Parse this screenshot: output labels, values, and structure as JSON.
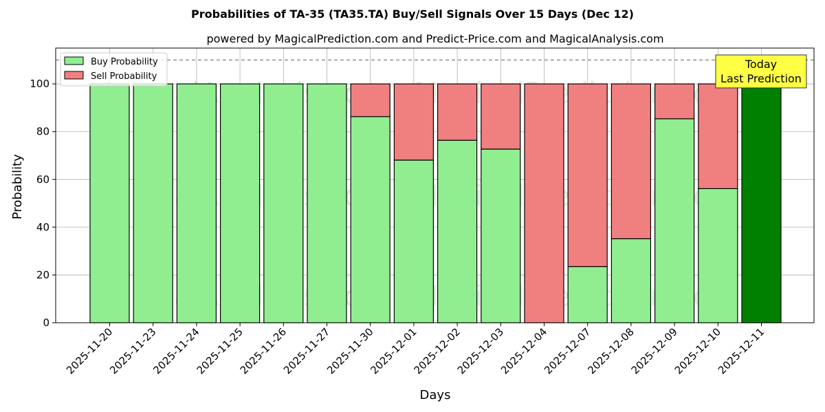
{
  "chart_data": {
    "type": "bar",
    "stacked": true,
    "title": "Probabilities of TA-35 (TA35.TA) Buy/Sell Signals Over 15 Days (Dec 12)",
    "subtitle": "powered by MagicalPrediction.com and Predict-Price.com and MagicalAnalysis.com",
    "xlabel": "Days",
    "ylabel": "Probability",
    "ylim": [
      0,
      115
    ],
    "yticks": [
      0,
      20,
      40,
      60,
      80,
      100
    ],
    "grid": true,
    "legend_position": "top-left",
    "reference_line": 110,
    "categories": [
      "2025-11-20",
      "2025-11-23",
      "2025-11-24",
      "2025-11-25",
      "2025-11-26",
      "2025-11-27",
      "2025-11-30",
      "2025-12-01",
      "2025-12-02",
      "2025-12-03",
      "2025-12-04",
      "2025-12-07",
      "2025-12-08",
      "2025-12-09",
      "2025-12-10",
      "2025-12-11"
    ],
    "series": [
      {
        "name": "Buy Probability",
        "color": "#90ee90",
        "values": [
          100,
          100,
          100,
          100,
          100,
          100,
          86.3,
          68.1,
          76.4,
          72.7,
          0,
          23.5,
          35.2,
          85.4,
          56.2,
          100
        ]
      },
      {
        "name": "Sell Probability",
        "color": "#f08080",
        "values": [
          0,
          0,
          0,
          0,
          0,
          0,
          13.7,
          31.9,
          23.6,
          27.3,
          100,
          76.5,
          64.8,
          14.6,
          43.8,
          0
        ]
      }
    ],
    "highlight": {
      "index": 15,
      "color": "#008000"
    },
    "annotation": {
      "line1": "Today",
      "line2": "Last Prediction",
      "background": "#ffff44"
    },
    "watermarks": [
      "MagicalAnalysis.com",
      "MagicalPrediction.com"
    ]
  }
}
